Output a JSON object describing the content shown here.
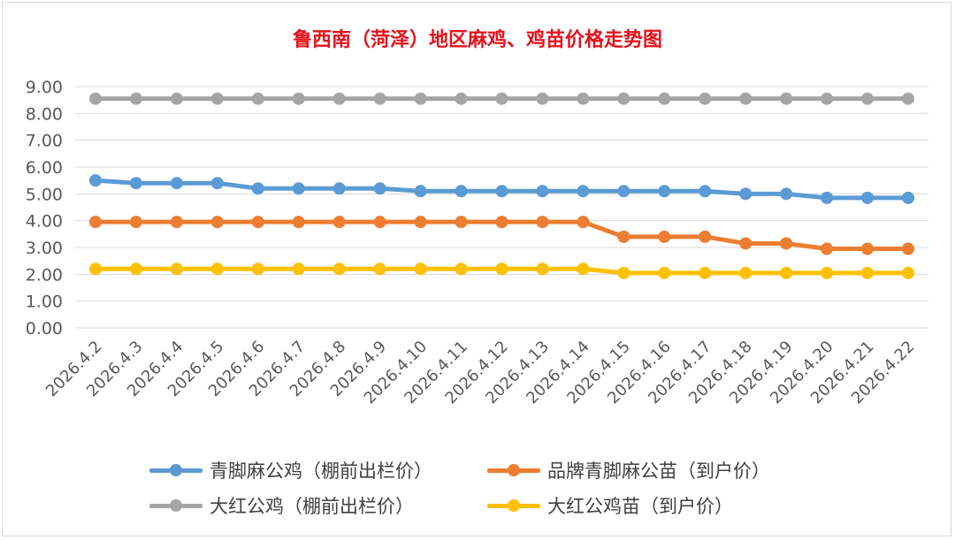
{
  "chart_data": {
    "type": "line",
    "title": "鲁西南（菏泽）地区麻鸡、鸡苗价格走势图",
    "xlabel": "",
    "ylabel": "",
    "ylim": [
      0,
      9
    ],
    "ytick_step": 1,
    "ytick_labels": [
      "0.00",
      "1.00",
      "2.00",
      "3.00",
      "4.00",
      "5.00",
      "6.00",
      "7.00",
      "8.00",
      "9.00"
    ],
    "grid": true,
    "legend_position": "bottom",
    "categories": [
      "2026.4.2",
      "2026.4.3",
      "2026.4.4",
      "2026.4.5",
      "2026.4.6",
      "2026.4.7",
      "2026.4.8",
      "2026.4.9",
      "2026.4.10",
      "2026.4.11",
      "2026.4.12",
      "2026.4.13",
      "2026.4.14",
      "2026.4.15",
      "2026.4.16",
      "2026.4.17",
      "2026.4.18",
      "2026.4.19",
      "2026.4.20",
      "2026.4.21",
      "2026.4.22"
    ],
    "series": [
      {
        "name": "青脚麻公鸡（棚前出栏价）",
        "color": "#5b9bd5",
        "values": [
          5.5,
          5.4,
          5.4,
          5.4,
          5.2,
          5.2,
          5.2,
          5.2,
          5.1,
          5.1,
          5.1,
          5.1,
          5.1,
          5.1,
          5.1,
          5.1,
          5.0,
          5.0,
          4.85,
          4.85,
          4.85
        ]
      },
      {
        "name": "品牌青脚麻公苗（到户价）",
        "color": "#ed7d31",
        "values": [
          3.95,
          3.95,
          3.95,
          3.95,
          3.95,
          3.95,
          3.95,
          3.95,
          3.95,
          3.95,
          3.95,
          3.95,
          3.95,
          3.4,
          3.4,
          3.4,
          3.15,
          3.15,
          2.95,
          2.95,
          2.95
        ]
      },
      {
        "name": "大红公鸡（棚前出栏价）",
        "color": "#a5a5a5",
        "values": [
          8.55,
          8.55,
          8.55,
          8.55,
          8.55,
          8.55,
          8.55,
          8.55,
          8.55,
          8.55,
          8.55,
          8.55,
          8.55,
          8.55,
          8.55,
          8.55,
          8.55,
          8.55,
          8.55,
          8.55,
          8.55
        ]
      },
      {
        "name": "大红公鸡苗（到户价）",
        "color": "#ffc000",
        "values": [
          2.2,
          2.2,
          2.2,
          2.2,
          2.2,
          2.2,
          2.2,
          2.2,
          2.2,
          2.2,
          2.2,
          2.2,
          2.2,
          2.05,
          2.05,
          2.05,
          2.05,
          2.05,
          2.05,
          2.05,
          2.05
        ]
      }
    ]
  }
}
